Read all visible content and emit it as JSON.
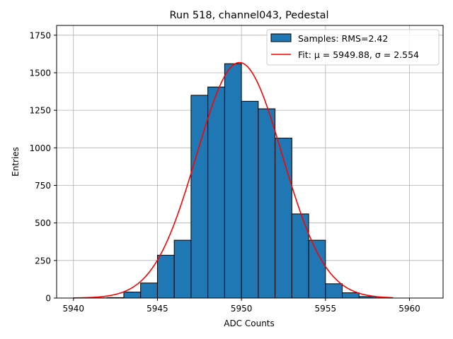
{
  "chart_data": {
    "type": "bar",
    "title": "Run 518, channel043, Pedestal",
    "xlabel": "ADC Counts",
    "ylabel": "Entries",
    "xlim": [
      5939,
      5962
    ],
    "ylim": [
      0,
      1815
    ],
    "x_ticks": [
      5940,
      5945,
      5950,
      5955,
      5960
    ],
    "y_ticks": [
      0,
      250,
      500,
      750,
      1000,
      1250,
      1500,
      1750
    ],
    "grid": true,
    "legend_position": "top-right",
    "histogram": {
      "name": "Samples: RMS=2.42",
      "color": "#1f77b4",
      "bin_edges": [
        5940,
        5941,
        5942,
        5943,
        5944,
        5945,
        5946,
        5947,
        5948,
        5949,
        5950,
        5951,
        5952,
        5953,
        5954,
        5955,
        5956,
        5957,
        5958,
        5959,
        5960,
        5961
      ],
      "counts": [
        0,
        1,
        3,
        40,
        100,
        285,
        385,
        1350,
        1405,
        1560,
        1310,
        1260,
        1065,
        560,
        385,
        95,
        35,
        10,
        2,
        0,
        0
      ]
    },
    "fit": {
      "name": "Fit: μ = 5949.88, σ = 2.554",
      "color": "#ff0000",
      "mu": 5949.88,
      "sigma": 2.554,
      "amplitude": 1568,
      "x_range": [
        5940,
        5959
      ]
    }
  }
}
